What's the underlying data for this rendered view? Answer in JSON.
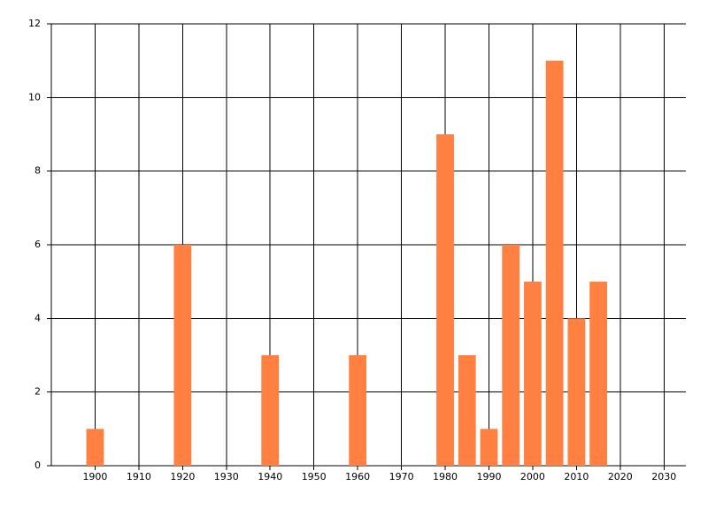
{
  "chart_data": {
    "type": "bar",
    "x": [
      1900,
      1920,
      1940,
      1960,
      1980,
      1985,
      1990,
      1995,
      2000,
      2005,
      2010,
      2015
    ],
    "values": [
      1,
      6,
      3,
      3,
      9,
      3,
      1,
      6,
      5,
      11,
      4,
      5
    ],
    "color": "#ff8040",
    "xlim": [
      1890,
      2035
    ],
    "xticks": [
      1900,
      1910,
      1920,
      1930,
      1940,
      1950,
      1960,
      1970,
      1980,
      1990,
      2000,
      2010,
      2020,
      2030
    ],
    "ylim": [
      0,
      12
    ],
    "yticks": [
      0,
      2,
      4,
      6,
      8,
      10,
      12
    ],
    "grid": true
  }
}
